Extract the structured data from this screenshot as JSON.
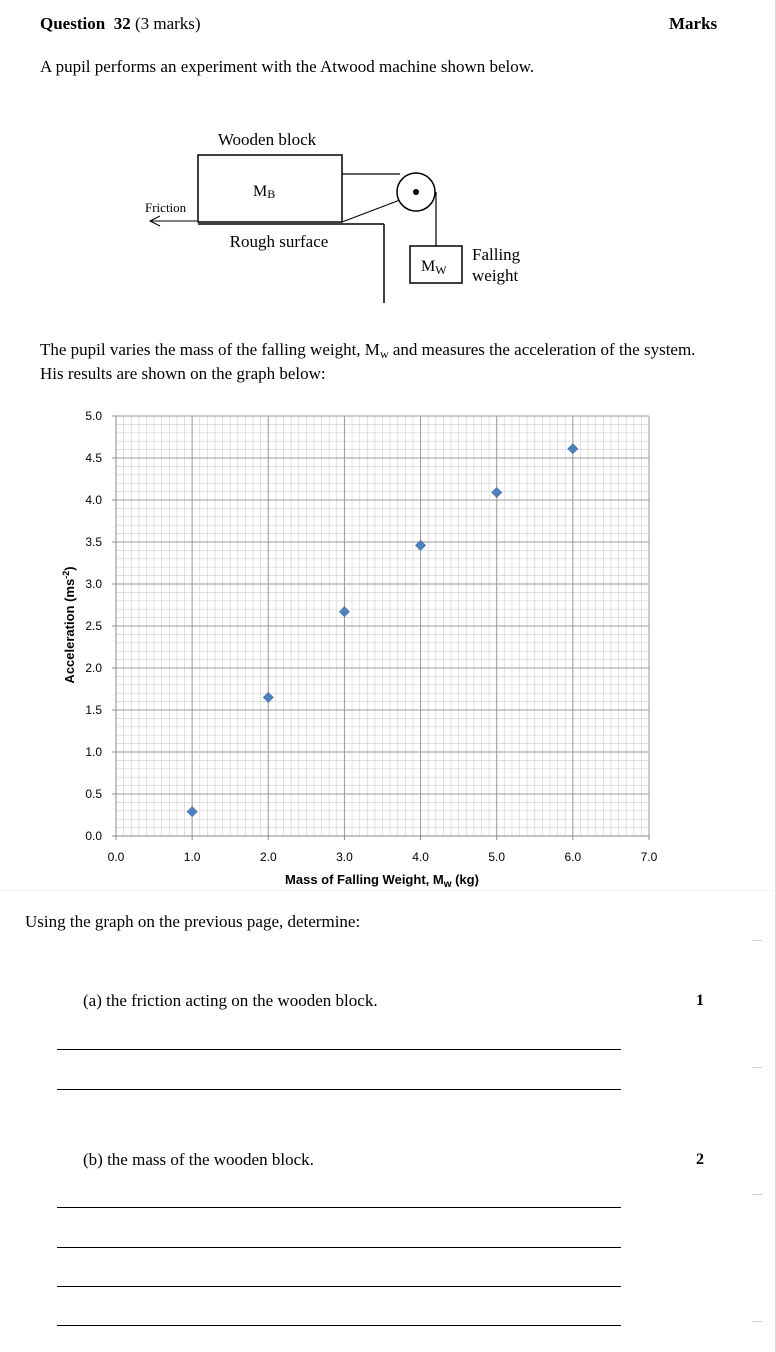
{
  "header": {
    "question_label": "Question",
    "question_number": "32",
    "question_marks": "(3 marks)",
    "marks_heading": "Marks"
  },
  "intro_text": "A pupil performs an experiment with the Atwood machine shown below.",
  "diagram": {
    "block_label": "Wooden block",
    "block_mass_main": "M",
    "block_mass_sub": "B",
    "friction_label": "Friction",
    "surface_label": "Rough surface",
    "weight_mass_main": "M",
    "weight_mass_sub": "W",
    "weight_label_line1": "Falling",
    "weight_label_line2": "weight"
  },
  "results_text": {
    "part1": "The pupil varies the mass of the falling weight, M",
    "sub": "w",
    "part2": " and measures the acceleration of the system. His results are shown on the graph below:"
  },
  "chart_data": {
    "type": "scatter",
    "title": "",
    "xlabel_main": "Mass of Falling Weight, M",
    "xlabel_sub": "w",
    "xlabel_unit": " (kg)",
    "ylabel_main": "Acceleration (ms",
    "ylabel_sup": "-2",
    "ylabel_end": ")",
    "xlim": [
      0,
      7
    ],
    "ylim": [
      0,
      5
    ],
    "x_ticks": [
      "0.0",
      "1.0",
      "2.0",
      "3.0",
      "4.0",
      "5.0",
      "6.0",
      "7.0"
    ],
    "y_ticks": [
      "0.0",
      "0.5",
      "1.0",
      "1.5",
      "2.0",
      "2.5",
      "3.0",
      "3.5",
      "4.0",
      "4.5",
      "5.0"
    ],
    "grid": true,
    "marker": "diamond",
    "marker_color": "#4f81bd",
    "points": [
      {
        "x": 1.0,
        "y": 0.29
      },
      {
        "x": 2.0,
        "y": 1.65
      },
      {
        "x": 3.0,
        "y": 2.67
      },
      {
        "x": 4.0,
        "y": 3.46
      },
      {
        "x": 5.0,
        "y": 4.09
      },
      {
        "x": 6.0,
        "y": 4.61
      }
    ]
  },
  "instruction": "Using the graph on the previous page, determine:",
  "parts": [
    {
      "label": "(a) the friction acting on the wooden block.",
      "marks": "1"
    },
    {
      "label": "(b) the mass of the wooden block.",
      "marks": "2"
    }
  ]
}
